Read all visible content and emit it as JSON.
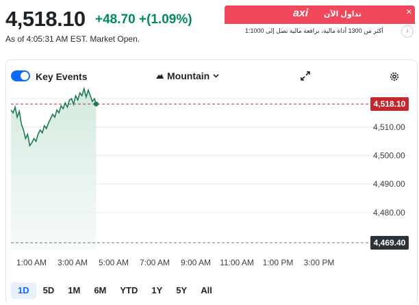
{
  "quote": {
    "price": "4,518.10",
    "change": "+48.70 +(1.09%)",
    "timestamp": "As of 4:05:31 AM EST. Market Open."
  },
  "ad": {
    "logo": "axi",
    "cta": "تداول الآن",
    "subtitle": "أكثر من 1300 أداة مالية، برافعة مالية تصل إلى 1:1000",
    "close": "✕",
    "arrow": "›"
  },
  "toolbar": {
    "key_events_label": "Key Events",
    "key_events_on": true,
    "chart_style_label": "Mountain"
  },
  "ranges": [
    "1D",
    "5D",
    "1M",
    "6M",
    "YTD",
    "1Y",
    "5Y",
    "All"
  ],
  "active_range": "1D",
  "colors": {
    "up": "#008a5a",
    "line": "#1a7a4a",
    "ref_line": "#c1272d",
    "toggle": "#0f69ff"
  },
  "chart_data": {
    "type": "area",
    "x_ticks": [
      "1:00 AM",
      "3:00 AM",
      "5:00 AM",
      "7:00 AM",
      "9:00 AM",
      "11:00 AM",
      "1:00 PM",
      "3:00 PM"
    ],
    "y_ticks": [
      "4,510.00",
      "4,500.00",
      "4,490.00",
      "4,480.00"
    ],
    "y_tick_values": [
      4510,
      4500,
      4490,
      4480
    ],
    "ylim": [
      4467,
      4521
    ],
    "current_label": "4,518.10",
    "current_value": 4518.1,
    "previous_close_label": "4,469.40",
    "previous_close_value": 4469.4,
    "series": [
      {
        "x_hours": [
          0.0,
          0.1,
          0.2,
          0.3,
          0.4,
          0.5,
          0.6,
          0.7,
          0.8,
          0.9,
          1.0,
          1.1,
          1.2,
          1.3,
          1.4,
          1.5,
          1.6,
          1.7,
          1.8,
          1.9,
          2.0,
          2.1,
          2.2,
          2.3,
          2.4,
          2.5,
          2.6,
          2.7,
          2.8,
          2.9,
          3.0,
          3.1,
          3.2,
          3.3,
          3.4,
          3.5,
          3.6,
          3.7,
          3.8,
          3.9,
          4.0,
          4.08
        ],
        "values": [
          4516.0,
          4515.0,
          4517.0,
          4513.5,
          4515.5,
          4511.0,
          4509.0,
          4506.0,
          4507.5,
          4503.5,
          4504.5,
          4506.0,
          4505.0,
          4507.5,
          4509.0,
          4508.0,
          4510.5,
          4509.5,
          4511.5,
          4513.0,
          4514.5,
          4513.5,
          4516.0,
          4515.0,
          4517.5,
          4516.5,
          4518.5,
          4517.0,
          4519.5,
          4520.0,
          4518.0,
          4521.0,
          4519.5,
          4522.0,
          4521.0,
          4523.5,
          4520.5,
          4523.0,
          4521.0,
          4519.0,
          4520.0,
          4518.1
        ]
      }
    ],
    "grid": true
  }
}
